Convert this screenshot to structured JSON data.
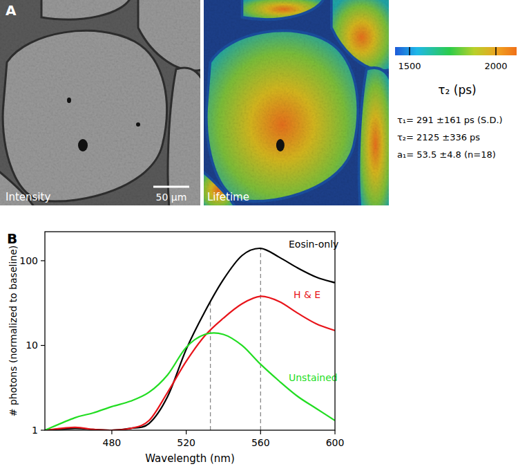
{
  "panel_a": {
    "label": "A",
    "images": [
      {
        "label": "Intensity"
      },
      {
        "label": "Lifetime"
      }
    ],
    "scale_bar": "50 μm",
    "colorbar": {
      "label": "τ₂ (ps)",
      "range": [
        1416,
        2120
      ],
      "ticks": [
        1500,
        2000
      ]
    },
    "stats": [
      "τ₁= 291 ±161 ps (S.D.)",
      "τ₂= 2125 ±336 ps",
      "a₁= 53.5 ±4.8 (n=18)"
    ]
  },
  "chart_data": {
    "type": "line",
    "label": "B",
    "x_label": "Wavelength (nm)",
    "y_label": "# photons (normalized to baseline)",
    "x": [
      444,
      460,
      470,
      480,
      490,
      500,
      510,
      520,
      530,
      540,
      550,
      560,
      570,
      580,
      590,
      600
    ],
    "series": [
      {
        "name": "Eosin-only",
        "color": "#000000",
        "values": [
          1,
          1.05,
          1.02,
          1.0,
          1.05,
          1.2,
          2.5,
          9,
          25,
          60,
          115,
          140,
          110,
          82,
          64,
          55
        ]
      },
      {
        "name": "H & E",
        "color": "#e8141a",
        "values": [
          1,
          1.08,
          1.02,
          1.0,
          1.05,
          1.3,
          2.8,
          6.5,
          13,
          21,
          31,
          38,
          33,
          24,
          18,
          15
        ]
      },
      {
        "name": "Unstained",
        "color": "#22dd22",
        "values": [
          1,
          1.4,
          1.6,
          1.9,
          2.2,
          2.8,
          4.5,
          9.5,
          13.5,
          13.5,
          10,
          6,
          3.8,
          2.5,
          1.8,
          1.3
        ]
      }
    ],
    "peak_lines": [
      533,
      560
    ],
    "xlim": [
      444,
      600
    ],
    "ylim": [
      1,
      220
    ],
    "xticks": [
      480,
      520,
      560,
      600
    ],
    "yticks": [
      1,
      10,
      100
    ],
    "log": "y",
    "grid": false
  }
}
